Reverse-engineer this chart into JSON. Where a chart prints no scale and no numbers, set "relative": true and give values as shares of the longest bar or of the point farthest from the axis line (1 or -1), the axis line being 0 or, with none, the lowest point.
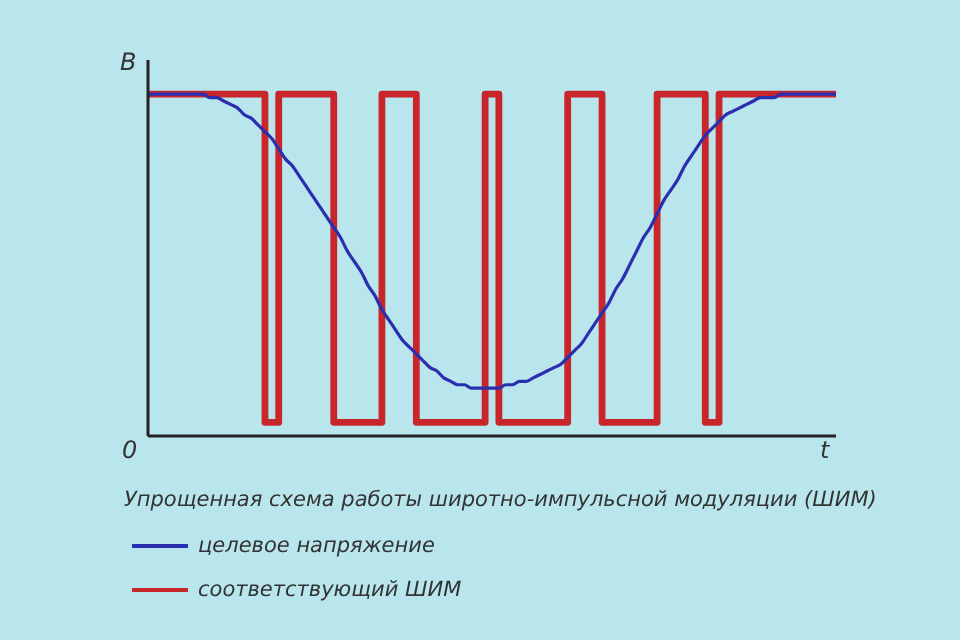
{
  "chart_data": {
    "type": "line",
    "relative": true,
    "xlabel": "t",
    "ylabel": "В",
    "legend": "bottom",
    "marker": "none",
    "annotations": [
      "0",
      "Упрощенная схема работы широтно-импульсной модуляции (ШИМ)"
    ],
    "categories": [
      null,
      null,
      null,
      null,
      null,
      null,
      null,
      null,
      null,
      null,
      null,
      null,
      null,
      null,
      null,
      null,
      null,
      null,
      null,
      null,
      null,
      null,
      null,
      null,
      null,
      null,
      null,
      null,
      null,
      null,
      null,
      null,
      null,
      null,
      null,
      null,
      null,
      null,
      null,
      null,
      null,
      null,
      null,
      null,
      null,
      null,
      null,
      null,
      null,
      null,
      null,
      null,
      null,
      null,
      null,
      null,
      null,
      null,
      null,
      null,
      null,
      null,
      null,
      null,
      null,
      null,
      null,
      null,
      null,
      null,
      null,
      null,
      null,
      null,
      null,
      null,
      null,
      null,
      null,
      null,
      null,
      null,
      null,
      null,
      null,
      null,
      null,
      null,
      null,
      null,
      null,
      null,
      null,
      null,
      null,
      null,
      null,
      null,
      null,
      null,
      null
    ],
    "series": [
      {
        "name": "целевое напряжение",
        "color": "#2a2fb0",
        "values": [
          1,
          1,
          1,
          1,
          1,
          1,
          1,
          1,
          1,
          0.99,
          0.99,
          0.98,
          0.97,
          0.96,
          0.94,
          0.93,
          0.91,
          0.89,
          0.87,
          0.84,
          0.81,
          0.79,
          0.76,
          0.73,
          0.7,
          0.67,
          0.64,
          0.61,
          0.58,
          0.54,
          0.51,
          0.48,
          0.44,
          0.41,
          0.37,
          0.34,
          0.31,
          0.28,
          0.26,
          0.24,
          0.22,
          0.2,
          0.19,
          0.17,
          0.16,
          0.15,
          0.15,
          0.14,
          0.14,
          0.14,
          0.14,
          0.14,
          0.15,
          0.15,
          0.16,
          0.16,
          0.17,
          0.18,
          0.19,
          0.2,
          0.21,
          0.23,
          0.25,
          0.27,
          0.3,
          0.33,
          0.36,
          0.39,
          0.43,
          0.46,
          0.5,
          0.54,
          0.58,
          0.61,
          0.65,
          0.69,
          0.72,
          0.75,
          0.79,
          0.82,
          0.85,
          0.88,
          0.9,
          0.92,
          0.94,
          0.95,
          0.96,
          0.97,
          0.98,
          0.99,
          0.99,
          0.99,
          1,
          1,
          1,
          1,
          1,
          1,
          1,
          1,
          1
        ]
      },
      {
        "name": "соответствующий ШИМ",
        "type": "step",
        "color": "#c8262b",
        "values": [
          1,
          1,
          1,
          1,
          1,
          1,
          1,
          1,
          1,
          1,
          1,
          1,
          1,
          1,
          1,
          1,
          1,
          0.04,
          0.04,
          1,
          1,
          1,
          1,
          1,
          1,
          1,
          1,
          0.04,
          0.04,
          0.04,
          0.04,
          0.04,
          0.04,
          0.04,
          1,
          1,
          1,
          1,
          1,
          0.04,
          0.04,
          0.04,
          0.04,
          0.04,
          0.04,
          0.04,
          0.04,
          0.04,
          0.04,
          1,
          1,
          0.04,
          0.04,
          0.04,
          0.04,
          0.04,
          0.04,
          0.04,
          0.04,
          0.04,
          0.04,
          1,
          1,
          1,
          1,
          1,
          0.04,
          0.04,
          0.04,
          0.04,
          0.04,
          0.04,
          0.04,
          0.04,
          1,
          1,
          1,
          1,
          1,
          1,
          1,
          0.04,
          0.04,
          1,
          1,
          1,
          1,
          1,
          1,
          1,
          1,
          1,
          1,
          1,
          1,
          1,
          1,
          1,
          1,
          1,
          1
        ]
      }
    ]
  }
}
